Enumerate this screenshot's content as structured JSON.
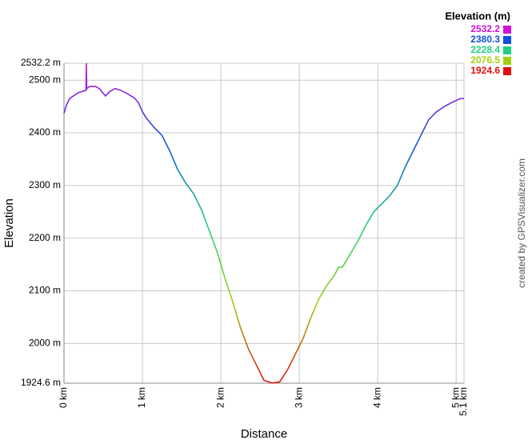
{
  "chart_data": {
    "type": "line",
    "x_label": "Distance",
    "y_label": "Elevation",
    "credit": "created by GPSVisualizer.com",
    "legend_title": "Elevation (m)",
    "color_scale": [
      {
        "value": 2532.2,
        "color": "#d010d8"
      },
      {
        "value": 2380.3,
        "color": "#1050e0"
      },
      {
        "value": 2228.4,
        "color": "#20d080"
      },
      {
        "value": 2076.5,
        "color": "#a0d010"
      },
      {
        "value": 1924.6,
        "color": "#e01010"
      }
    ],
    "xlim": [
      0,
      5.1
    ],
    "ylim": [
      1924.6,
      2532.2
    ],
    "grid": true,
    "xticks": [
      {
        "value": 0,
        "label": "0 km"
      },
      {
        "value": 1,
        "label": "1 km"
      },
      {
        "value": 2,
        "label": "2 km"
      },
      {
        "value": 3,
        "label": "3 km"
      },
      {
        "value": 4,
        "label": "4 km"
      },
      {
        "value": 5,
        "label": "5 km"
      },
      {
        "value": 5.1,
        "label": "5.1 km"
      }
    ],
    "yticks": [
      {
        "value": 1924.6,
        "label": "1924.6 m"
      },
      {
        "value": 2000,
        "label": "2000 m"
      },
      {
        "value": 2100,
        "label": "2100 m"
      },
      {
        "value": 2200,
        "label": "2200 m"
      },
      {
        "value": 2300,
        "label": "2300 m"
      },
      {
        "value": 2400,
        "label": "2400 m"
      },
      {
        "value": 2500,
        "label": "2500 m"
      },
      {
        "value": 2532.2,
        "label": "2532.2 m"
      }
    ],
    "x": [
      0,
      0.03,
      0.07,
      0.12,
      0.18,
      0.26,
      0.28,
      0.285,
      0.29,
      0.33,
      0.4,
      0.45,
      0.5,
      0.53,
      0.58,
      0.65,
      0.72,
      0.8,
      0.9,
      0.95,
      1.0,
      1.05,
      1.15,
      1.25,
      1.35,
      1.45,
      1.55,
      1.65,
      1.75,
      1.85,
      1.95,
      2.05,
      2.15,
      2.25,
      2.35,
      2.45,
      2.55,
      2.65,
      2.75,
      2.85,
      2.95,
      3.05,
      3.15,
      3.25,
      3.35,
      3.45,
      3.5,
      3.55,
      3.65,
      3.75,
      3.85,
      3.95,
      4.05,
      4.15,
      4.25,
      4.35,
      4.45,
      4.55,
      4.65,
      4.75,
      4.85,
      4.95,
      5.05,
      5.1
    ],
    "values": [
      2437,
      2452,
      2465,
      2470,
      2476,
      2480,
      2480,
      2532.2,
      2484,
      2488,
      2488,
      2484,
      2475,
      2470,
      2478,
      2484,
      2481,
      2475,
      2466,
      2457,
      2440,
      2428,
      2410,
      2395,
      2365,
      2330,
      2305,
      2285,
      2255,
      2215,
      2175,
      2125,
      2080,
      2030,
      1990,
      1960,
      1930,
      1925,
      1927,
      1950,
      1980,
      2010,
      2050,
      2085,
      2110,
      2130,
      2145,
      2145,
      2170,
      2195,
      2225,
      2250,
      2265,
      2280,
      2300,
      2335,
      2365,
      2395,
      2425,
      2440,
      2450,
      2458,
      2465,
      2465
    ]
  }
}
